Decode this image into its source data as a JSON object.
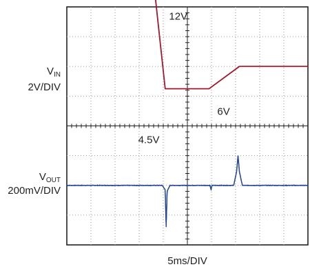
{
  "chart_data": {
    "type": "line",
    "title": "",
    "xlabel": "5ms/DIV",
    "time_per_div_ms": 5,
    "grid": true,
    "divisions": {
      "x": 10,
      "y": 8
    },
    "channels": [
      {
        "name_main": "V",
        "name_sub": "IN",
        "scale_label": "2V/DIV",
        "units_per_div_V": 2,
        "ground_div_from_top": 5,
        "color": "#a3162b",
        "x_ms": [
          0,
          17.9,
          20.4,
          20.8,
          29.5,
          35.8,
          36.6,
          50
        ],
        "y_V": [
          12,
          12,
          4.5,
          4.5,
          4.5,
          6,
          6,
          6
        ]
      },
      {
        "name_main": "V",
        "name_sub": "OUT",
        "scale_label": "200mV/DIV",
        "units_per_div_V": 0.2,
        "ground_div_from_top": 6,
        "color": "#22449a",
        "noise_pp_V": 0.004,
        "x_ms": [
          0,
          19.8,
          20.4,
          20.6,
          20.8,
          21.4,
          29.7,
          29.9,
          30.1,
          34.6,
          35.2,
          35.5,
          35.8,
          36.4,
          50
        ],
        "y_V": [
          0,
          0,
          -0.03,
          -0.28,
          -0.04,
          0,
          0,
          -0.03,
          0,
          0,
          0.09,
          0.2,
          0.09,
          0,
          0
        ]
      }
    ],
    "annotations": [
      {
        "text": "12V",
        "x_ms": 21.2,
        "y_div": 0.1
      },
      {
        "text": "6V",
        "x_ms": 31.2,
        "y_div": 3.3
      },
      {
        "text": "4.5V",
        "x_ms": 14.8,
        "y_div": 4.25
      }
    ]
  }
}
